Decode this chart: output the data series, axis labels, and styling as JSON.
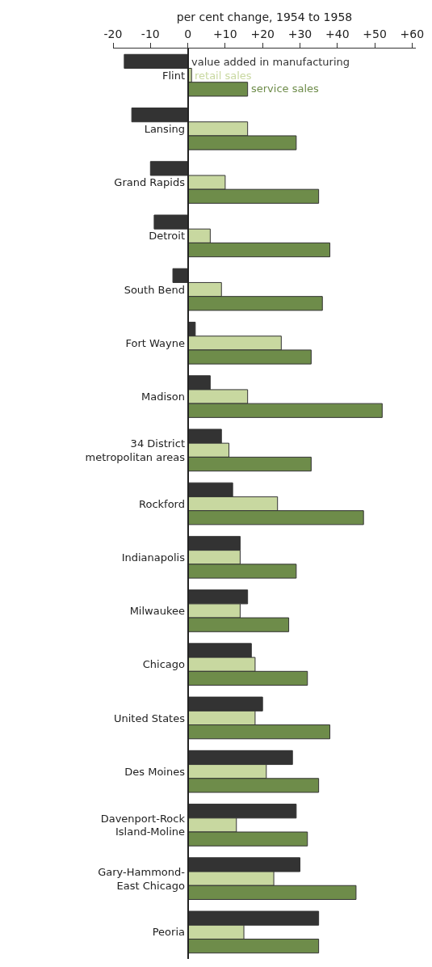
{
  "chart_data": {
    "type": "bar",
    "orientation": "horizontal",
    "xlabel": "per cent change, 1954 to 1958",
    "categories": [
      "Flint",
      "Lansing",
      "Grand Rapids",
      "Detroit",
      "South Bend",
      "Fort Wayne",
      "Madison",
      "34 District\nmetropolitan areas",
      "Rockford",
      "Indianapolis",
      "Milwaukee",
      "Chicago",
      "United States",
      "Des Moines",
      "Davenport-Rock\nIsland-Moline",
      "Gary-Hammond-\nEast Chicago",
      "Peoria"
    ],
    "series": [
      {
        "name": "value added in manufacturing",
        "color": "#333333",
        "values": [
          -17,
          -15,
          -10,
          -9,
          -4,
          2,
          6,
          9,
          12,
          14,
          16,
          17,
          20,
          28,
          29,
          30,
          35
        ]
      },
      {
        "name": "retail sales",
        "color": "#c8d8a0",
        "values": [
          1,
          16,
          10,
          6,
          9,
          25,
          16,
          11,
          24,
          14,
          14,
          18,
          18,
          21,
          13,
          23,
          15
        ]
      },
      {
        "name": "service sales",
        "color": "#6e8c4a",
        "values": [
          16,
          29,
          35,
          38,
          36,
          33,
          52,
          33,
          47,
          29,
          27,
          32,
          38,
          35,
          32,
          45,
          35
        ]
      }
    ],
    "xlim": [
      -20,
      61
    ],
    "xticks": [
      -20,
      -10,
      0,
      {
        "value": 10,
        "label": "+10"
      },
      {
        "value": 20,
        "label": "+20"
      },
      {
        "value": 30,
        "label": "+30"
      },
      {
        "value": 40,
        "label": "+40"
      },
      {
        "value": 50,
        "label": "+50"
      },
      {
        "value": 60,
        "label": "+60"
      }
    ],
    "grid": false,
    "legend": false
  }
}
